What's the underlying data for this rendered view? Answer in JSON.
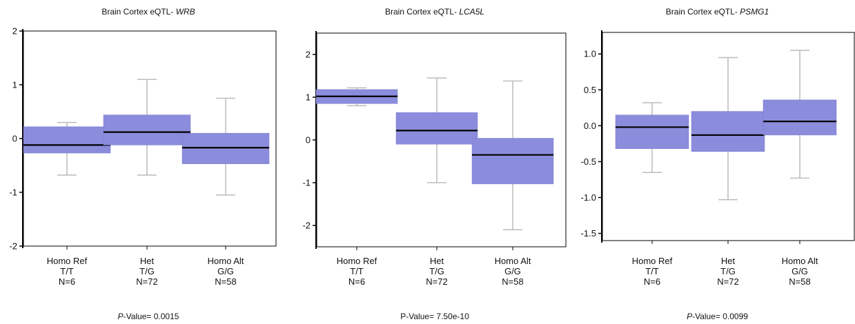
{
  "chart_data": [
    {
      "type": "box",
      "title_prefix": "Brain Cortex eQTL- ",
      "title_gene": "WRB",
      "pvalue_label_italic": "P",
      "pvalue_label_rest": "-Value= 0.0015",
      "pvalue_label_italic_p": true,
      "ylim": [
        -2,
        2
      ],
      "yticks": [
        2,
        1,
        0,
        -1,
        -2
      ],
      "ytick_labels": [
        "2",
        "1",
        "0",
        "-1",
        "-2"
      ],
      "groups": [
        {
          "name": "Homo Ref",
          "genotype": "T/T",
          "n": "N=6",
          "min": -0.68,
          "q1": -0.27,
          "median": -0.12,
          "q3": 0.22,
          "max": 0.3
        },
        {
          "name": "Het",
          "genotype": "T/G",
          "n": "N=72",
          "min": -0.68,
          "q1": -0.12,
          "median": 0.12,
          "q3": 0.44,
          "max": 1.1
        },
        {
          "name": "Homo Alt",
          "genotype": "G/G",
          "n": "N=58",
          "min": -1.05,
          "q1": -0.47,
          "median": -0.17,
          "q3": 0.1,
          "max": 0.75
        }
      ],
      "box_color": "#8C8CDC",
      "median_color": "#000000",
      "whisker_color": "#bbbbbb"
    },
    {
      "type": "box",
      "title_prefix": "Brain Cortex eQTL- ",
      "title_gene": "LCA5L",
      "pvalue_label_italic": "",
      "pvalue_label_rest": "P-Value= 7.50e-10",
      "pvalue_label_italic_p": false,
      "ylim": [
        -2.5,
        2.5
      ],
      "yticks": [
        2,
        1,
        0,
        -1,
        -2
      ],
      "ytick_labels": [
        "2",
        "1",
        "0",
        "-1",
        "-2"
      ],
      "groups": [
        {
          "name": "Homo Ref",
          "genotype": "T/T",
          "n": "N=6",
          "min": 0.8,
          "q1": 0.85,
          "median": 1.02,
          "q3": 1.18,
          "max": 1.22
        },
        {
          "name": "Het",
          "genotype": "T/G",
          "n": "N=72",
          "min": -1.0,
          "q1": -0.1,
          "median": 0.22,
          "q3": 0.64,
          "max": 1.45
        },
        {
          "name": "Homo Alt",
          "genotype": "G/G",
          "n": "N=58",
          "min": -2.1,
          "q1": -1.03,
          "median": -0.35,
          "q3": 0.04,
          "max": 1.38
        }
      ],
      "box_color": "#8C8CDC",
      "median_color": "#000000",
      "whisker_color": "#bbbbbb"
    },
    {
      "type": "box",
      "title_prefix": "Brain Cortex eQTL- ",
      "title_gene": "PSMG1",
      "pvalue_label_italic": "P",
      "pvalue_label_rest": "-Value= 0.0099",
      "pvalue_label_italic_p": true,
      "ylim": [
        -1.6,
        1.3
      ],
      "yticks": [
        1.0,
        0.5,
        0.0,
        -0.5,
        -1.0,
        -1.5
      ],
      "ytick_labels": [
        "1.0",
        "0.5",
        "0.0",
        "-0.5",
        "-1.0",
        "-1.5"
      ],
      "groups": [
        {
          "name": "Homo Ref",
          "genotype": "T/T",
          "n": "N=6",
          "min": -0.65,
          "q1": -0.32,
          "median": -0.02,
          "q3": 0.15,
          "max": 0.32
        },
        {
          "name": "Het",
          "genotype": "T/G",
          "n": "N=72",
          "min": -1.03,
          "q1": -0.36,
          "median": -0.13,
          "q3": 0.2,
          "max": 0.95
        },
        {
          "name": "Homo Alt",
          "genotype": "G/G",
          "n": "N=58",
          "min": -0.73,
          "q1": -0.13,
          "median": 0.06,
          "q3": 0.36,
          "max": 1.05
        }
      ],
      "box_color": "#8C8CDC",
      "median_color": "#000000",
      "whisker_color": "#bbbbbb"
    }
  ]
}
